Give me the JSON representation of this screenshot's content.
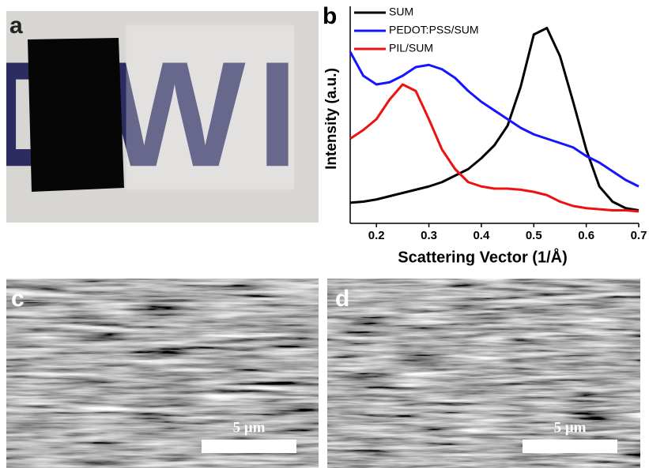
{
  "panel_labels": [
    "a",
    "b",
    "c",
    "d"
  ],
  "photo_text": "DWI",
  "scale_bars": [
    "5 μm",
    "5 μm"
  ],
  "chart_data": {
    "type": "line",
    "xlabel": "Scattering Vector (1/Å)",
    "ylabel": "Intensity (a.u.)",
    "x": [
      0.15,
      0.175,
      0.2,
      0.225,
      0.25,
      0.275,
      0.3,
      0.325,
      0.35,
      0.375,
      0.4,
      0.425,
      0.45,
      0.475,
      0.5,
      0.525,
      0.55,
      0.575,
      0.6,
      0.625,
      0.65,
      0.675,
      0.7
    ],
    "series": [
      {
        "name": "SUM",
        "color": "#000000",
        "values": [
          0.095,
          0.1,
          0.11,
          0.125,
          0.14,
          0.155,
          0.17,
          0.19,
          0.22,
          0.25,
          0.3,
          0.36,
          0.45,
          0.63,
          0.87,
          0.9,
          0.77,
          0.56,
          0.34,
          0.17,
          0.1,
          0.07,
          0.06
        ]
      },
      {
        "name": "PEDOT:PSS/SUM",
        "color": "#1515ff",
        "values": [
          0.79,
          0.68,
          0.64,
          0.65,
          0.68,
          0.72,
          0.73,
          0.71,
          0.67,
          0.61,
          0.56,
          0.52,
          0.48,
          0.44,
          0.41,
          0.39,
          0.37,
          0.35,
          0.31,
          0.28,
          0.24,
          0.2,
          0.17
        ]
      },
      {
        "name": "PIL/SUM",
        "color": "#ee1111",
        "values": [
          0.39,
          0.43,
          0.48,
          0.57,
          0.64,
          0.61,
          0.48,
          0.34,
          0.25,
          0.19,
          0.17,
          0.16,
          0.16,
          0.155,
          0.145,
          0.13,
          0.1,
          0.08,
          0.07,
          0.065,
          0.06,
          0.06,
          0.055
        ]
      }
    ],
    "xlim": [
      0.15,
      0.7
    ],
    "xticks": [
      0.2,
      0.3,
      0.4,
      0.5,
      0.6,
      0.7
    ],
    "ylim": [
      0,
      1
    ],
    "legend": "upper left"
  }
}
